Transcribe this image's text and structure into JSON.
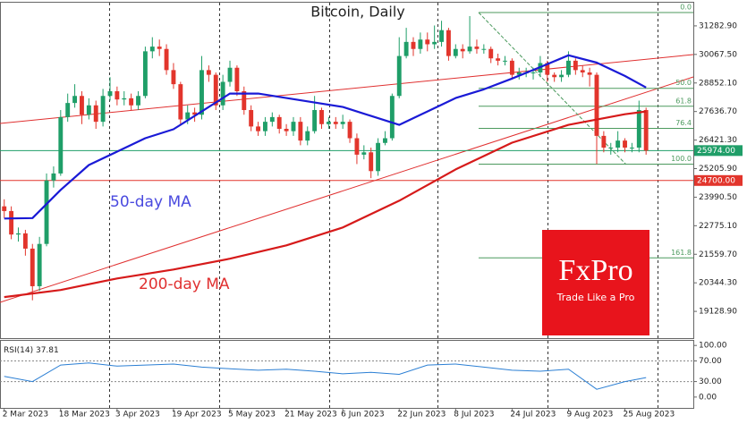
{
  "chart_data": [
    {
      "type": "candlestick",
      "title": "Bitcoin, Daily",
      "xlim": [
        -0.6,
        97.7
      ],
      "ylim": [
        17990,
        32270
      ],
      "xticks": [
        {
          "value": 0,
          "label": "2 Mar 2023"
        },
        {
          "value": 8,
          "label": "18 Mar 2023"
        },
        {
          "value": 16,
          "label": "3 Apr 2023"
        },
        {
          "value": 24,
          "label": "19 Apr 2023"
        },
        {
          "value": 32,
          "label": "5 May 2023"
        },
        {
          "value": 40,
          "label": "21 May 2023"
        },
        {
          "value": 48,
          "label": "6 Jun 2023"
        },
        {
          "value": 56,
          "label": "22 Jun 2023"
        },
        {
          "value": 64,
          "label": "8 Jul 2023"
        },
        {
          "value": 72,
          "label": "24 Jul 2023"
        },
        {
          "value": 80,
          "label": "9 Aug 2023"
        },
        {
          "value": 88,
          "label": "25 Aug 2023"
        }
      ],
      "yticks": [
        {
          "value": 31282.9,
          "label": "31282.90"
        },
        {
          "value": 30067.5,
          "label": "30067.50"
        },
        {
          "value": 28852.1,
          "label": "28852.10"
        },
        {
          "value": 27636.7,
          "label": "27636.70"
        },
        {
          "value": 26421.3,
          "label": "26421.30"
        },
        {
          "value": 25205.9,
          "label": "25205.90"
        },
        {
          "value": 23990.5,
          "label": "23990.50"
        },
        {
          "value": 22775.1,
          "label": "22775.10"
        },
        {
          "value": 21559.7,
          "label": "21559.70"
        },
        {
          "value": 20344.3,
          "label": "20344.30"
        },
        {
          "value": 19128.9,
          "label": "19128.90"
        }
      ],
      "up_color": "#1f9e68",
      "down_color": "#e2352c",
      "open": [
        23600,
        23400,
        22400,
        22450,
        21800,
        20200,
        22000,
        24700,
        25000,
        27400,
        28000,
        28300,
        27500,
        27900,
        27200,
        28300,
        28500,
        28150,
        28200,
        27900,
        28300,
        30200,
        30400,
        30300,
        29400,
        28800,
        27300,
        27600,
        27500,
        29400,
        29200,
        27900,
        28900,
        29500,
        28500,
        27700,
        27000,
        26800,
        27200,
        27400,
        26900,
        26800,
        27200,
        26400,
        26800,
        27700,
        27100,
        27200,
        27100,
        27200,
        26500,
        25800,
        25900,
        25100,
        26300,
        26500,
        28300,
        30000,
        30600,
        30300,
        30700,
        30500,
        30600,
        31100,
        30000,
        30300,
        30200,
        30400,
        30300,
        30300,
        29900,
        29800,
        29800,
        29200,
        29300,
        29300,
        29300,
        29700,
        29200,
        29100,
        29200,
        29800,
        29400,
        29300,
        29200,
        26600,
        26100,
        26100,
        26400,
        26100,
        26100,
        27700
      ],
      "high": [
        23900,
        23600,
        22700,
        22600,
        22000,
        22300,
        25000,
        25300,
        27700,
        28400,
        28800,
        28500,
        28200,
        28100,
        28600,
        29100,
        28700,
        28500,
        28400,
        28500,
        30400,
        30800,
        30700,
        30500,
        29700,
        28900,
        27900,
        27800,
        30000,
        29600,
        29300,
        29200,
        29800,
        29600,
        28700,
        27900,
        27200,
        27400,
        27600,
        27500,
        27100,
        27400,
        27400,
        27000,
        28300,
        27800,
        27400,
        27400,
        27500,
        27300,
        26700,
        26200,
        26100,
        26500,
        26800,
        28400,
        30800,
        31200,
        30800,
        31000,
        31000,
        31300,
        31500,
        31200,
        30500,
        30500,
        31700,
        30700,
        30500,
        30400,
        30100,
        30000,
        29900,
        29500,
        29500,
        29500,
        30000,
        29800,
        29300,
        29400,
        30200,
        29900,
        29600,
        29500,
        29300,
        26800,
        26300,
        26800,
        26500,
        26300,
        28100,
        27800
      ],
      "low": [
        23100,
        22200,
        22100,
        21500,
        19600,
        20000,
        21900,
        24400,
        24900,
        27200,
        27800,
        27100,
        27300,
        26900,
        27000,
        28100,
        27900,
        27900,
        27700,
        27700,
        28200,
        29900,
        30000,
        29200,
        28600,
        27100,
        27100,
        27200,
        27300,
        28900,
        27700,
        27700,
        28700,
        28300,
        27500,
        26800,
        26600,
        26600,
        27000,
        26700,
        26600,
        26600,
        26200,
        26200,
        26700,
        26900,
        26900,
        26900,
        26900,
        26300,
        25400,
        25600,
        24800,
        24900,
        26200,
        26400,
        28200,
        29900,
        30000,
        30100,
        30200,
        30300,
        30400,
        29800,
        29900,
        29900,
        30100,
        30100,
        30100,
        29700,
        29600,
        29600,
        29000,
        29000,
        29100,
        29000,
        29100,
        28900,
        28900,
        28900,
        29100,
        29200,
        29100,
        28700,
        25400,
        25900,
        25800,
        25900,
        25900,
        25900,
        25900,
        25800
      ],
      "close": [
        23400,
        22400,
        22450,
        21800,
        20200,
        22000,
        24700,
        25000,
        27400,
        28000,
        28300,
        27500,
        27900,
        27200,
        28300,
        28500,
        28150,
        28200,
        27900,
        28300,
        30200,
        30400,
        30300,
        29400,
        28800,
        27300,
        27600,
        27500,
        29400,
        29200,
        27900,
        28900,
        29500,
        28500,
        27700,
        27000,
        26800,
        27200,
        27400,
        26900,
        26800,
        27200,
        26400,
        26800,
        27700,
        27100,
        27200,
        27100,
        27200,
        26500,
        25800,
        25900,
        25100,
        26300,
        26500,
        28300,
        30000,
        30600,
        30300,
        30700,
        30500,
        30600,
        31100,
        30000,
        30300,
        30200,
        30400,
        30300,
        30300,
        29900,
        29800,
        29800,
        29200,
        29300,
        29300,
        29300,
        29700,
        29200,
        29100,
        29200,
        29800,
        29400,
        29300,
        29200,
        26600,
        26100,
        26100,
        26400,
        26100,
        26100,
        27700,
        25974
      ],
      "series": [
        {
          "name": "50-day MA",
          "color": "#1a1ad6",
          "x": [
            0,
            4,
            8,
            12,
            16,
            20,
            24,
            28,
            32,
            36,
            40,
            44,
            48,
            52,
            56,
            60,
            64,
            68,
            72,
            76,
            80,
            84,
            88,
            91
          ],
          "values": [
            23080,
            23100,
            24300,
            25360,
            25930,
            26500,
            26880,
            27640,
            28400,
            28400,
            28210,
            28020,
            27830,
            27450,
            27070,
            27640,
            28210,
            28580,
            29040,
            29530,
            30030,
            29720,
            29150,
            28660
          ]
        },
        {
          "name": "200-day MA",
          "color": "#d61a1a",
          "x": [
            0,
            8,
            16,
            24,
            32,
            40,
            48,
            56,
            64,
            72,
            80,
            88,
            91
          ],
          "values": [
            19736,
            20040,
            20530,
            20910,
            21370,
            21940,
            22700,
            23840,
            25170,
            26310,
            27070,
            27520,
            27640
          ]
        }
      ],
      "price_lines": [
        {
          "value": 25974,
          "label": "25974.00",
          "color": "#1f9e68"
        },
        {
          "value": 24700,
          "label": "24700.00",
          "color": "#e2352c"
        }
      ],
      "fib": {
        "high": 31852,
        "low": 25396,
        "color": "#4c9a5e",
        "levels": [
          {
            "value": 0,
            "label": "0.0"
          },
          {
            "value": 50,
            "label": "50.0"
          },
          61.8,
          76.4,
          {
            "value": 100,
            "label": "100.0"
          },
          161.8
        ]
      }
    },
    {
      "type": "line",
      "title": "RSI(14)",
      "color": "#2b7fd4",
      "xlim": [
        -0.6,
        97.7
      ],
      "ylim": [
        -21,
        109
      ],
      "yticks": [
        {
          "value": 100,
          "label": "100.00"
        },
        {
          "value": 70,
          "label": "70.00"
        },
        {
          "value": 30,
          "label": "30.00"
        },
        {
          "value": 0,
          "label": "0.00"
        }
      ],
      "x": [
        0,
        4,
        8,
        12,
        16,
        20,
        24,
        28,
        32,
        36,
        40,
        44,
        48,
        52,
        56,
        60,
        64,
        68,
        72,
        76,
        80,
        84,
        88,
        91
      ],
      "values": [
        40,
        30,
        62,
        66,
        60,
        62,
        64,
        58,
        55,
        52,
        54,
        50,
        45,
        48,
        44,
        62,
        64,
        58,
        52,
        50,
        54,
        15,
        30,
        37.81
      ]
    }
  ],
  "logo": {
    "name": "FxPro",
    "tagline": "Trade Like a Pro"
  }
}
